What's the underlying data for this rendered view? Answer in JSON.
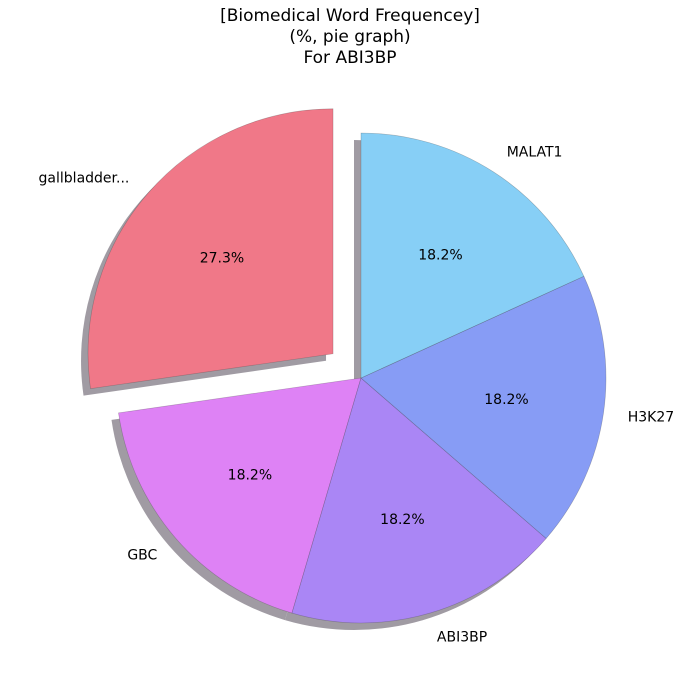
{
  "chart_data": {
    "type": "pie",
    "title_lines": [
      "[Biomedical Word Frequencey]",
      "(%, pie graph)",
      "For ABI3BP"
    ],
    "slices": [
      {
        "label": "gallbladder...",
        "value": 27.3,
        "pct_label": "27.3%",
        "color": "#f07888",
        "exploded": true
      },
      {
        "label": "GBC",
        "value": 18.2,
        "pct_label": "18.2%",
        "color": "#de82f5",
        "exploded": false
      },
      {
        "label": "ABI3BP",
        "value": 18.2,
        "pct_label": "18.2%",
        "color": "#aa86f5",
        "exploded": false
      },
      {
        "label": "H3K27",
        "value": 18.2,
        "pct_label": "18.2%",
        "color": "#879cf5",
        "exploded": false
      },
      {
        "label": "MALAT1",
        "value": 18.2,
        "pct_label": "18.2%",
        "color": "#87cff6",
        "exploded": false
      }
    ],
    "start_angle_deg": 90,
    "direction": "counterclockwise",
    "shadow": true
  }
}
